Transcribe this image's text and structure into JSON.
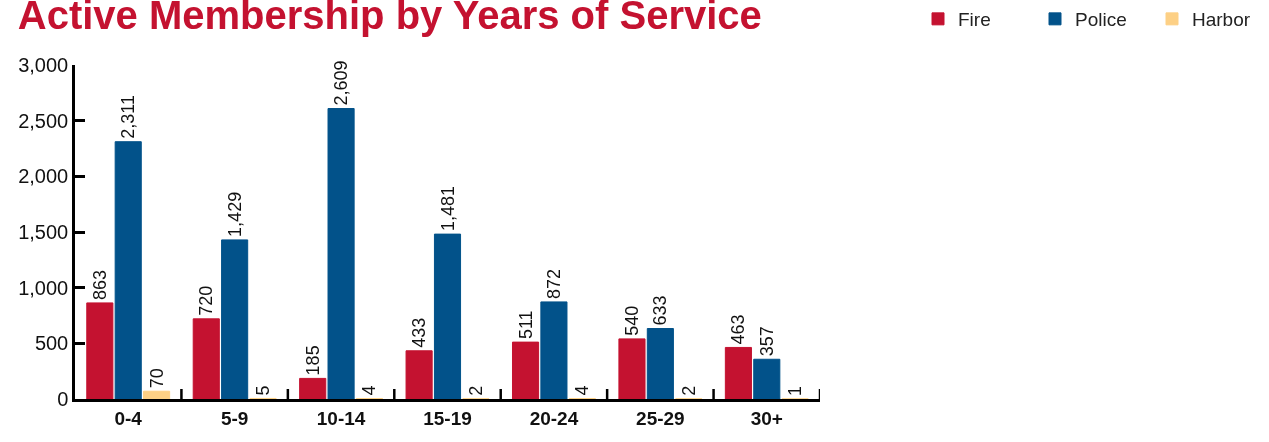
{
  "chart_data": {
    "type": "bar",
    "title": "Active Membership by Years of Service",
    "categories": [
      "0-4",
      "5-9",
      "10-14",
      "15-19",
      "20-24",
      "25-29",
      "30+"
    ],
    "series": [
      {
        "name": "Fire",
        "color": "#c41230",
        "values": [
          863,
          720,
          185,
          433,
          511,
          540,
          463
        ],
        "value_labels": [
          "863",
          "720",
          "185",
          "433",
          "511",
          "540",
          "463"
        ]
      },
      {
        "name": "Police",
        "color": "#02528a",
        "values": [
          2311,
          1429,
          2609,
          1481,
          872,
          633,
          357
        ],
        "value_labels": [
          "2,311",
          "1,429",
          "2,609",
          "1,481",
          "872",
          "633",
          "357"
        ]
      },
      {
        "name": "Harbor",
        "color": "#fdd085",
        "values": [
          70,
          5,
          4,
          2,
          4,
          2,
          1
        ],
        "value_labels": [
          "70",
          "5",
          "4",
          "2",
          "4",
          "2",
          "1"
        ]
      }
    ],
    "ylim": [
      0,
      3000
    ],
    "yticks": [
      0,
      500,
      {
        "value": 1000,
        "label": "1,000"
      },
      {
        "value": 1500,
        "label": "1,500"
      },
      {
        "value": 2000,
        "label": "2,000"
      },
      {
        "value": 2500,
        "label": "2,500"
      },
      {
        "value": 3000,
        "label": "3,000"
      }
    ],
    "legend": "top right"
  }
}
